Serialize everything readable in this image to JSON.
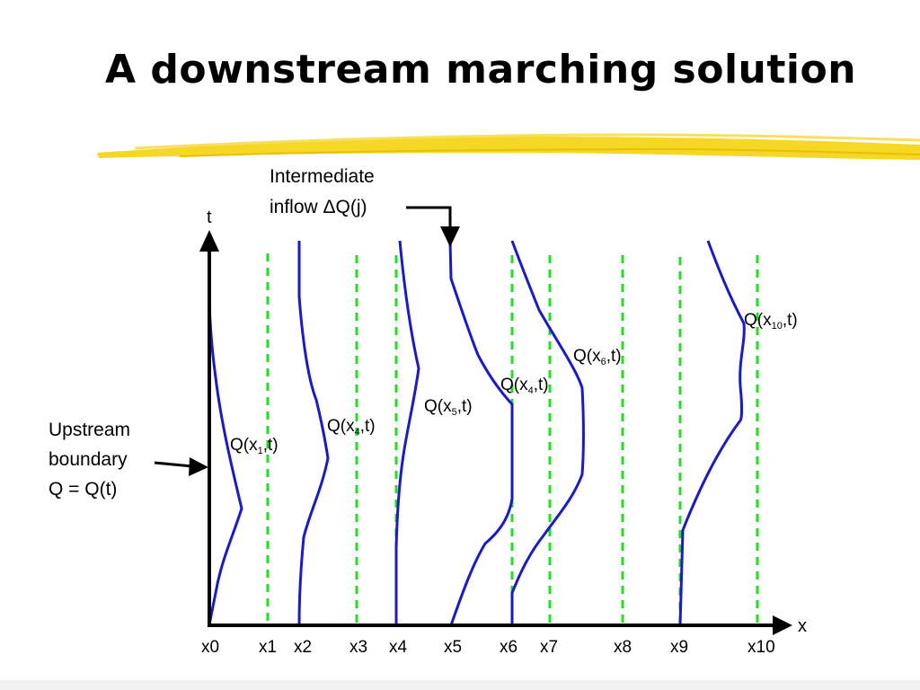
{
  "slide": {
    "title": "A downstream marching solution"
  },
  "diagram": {
    "t_axis_label": "t",
    "x_axis_label": "x",
    "x_tick_labels": [
      "x0",
      "x1",
      "x2",
      "x3",
      "x4",
      "x5",
      "x6",
      "x7",
      "x8",
      "x9",
      "x10"
    ],
    "annotations": {
      "intermediate_inflow_line1": "Intermediate",
      "intermediate_inflow_line2": "inflow ΔQ(j)",
      "upstream_line1": "Upstream",
      "upstream_line2": "boundary",
      "upstream_line3": "Q = Q(t)"
    },
    "curve_labels": [
      {
        "prefix": "Q(x",
        "sub": "1",
        "suffix": ",t)"
      },
      {
        "prefix": "Q(x",
        "sub": "4",
        "suffix": ",t)"
      },
      {
        "prefix": "Q(x",
        "sub": "5",
        "suffix": ",t)"
      },
      {
        "prefix": "Q(x",
        "sub": "4",
        "suffix": ",t)"
      },
      {
        "prefix": "Q(x",
        "sub": "6",
        "suffix": ",t)"
      },
      {
        "prefix": "Q(x",
        "sub": "10",
        "suffix": ",t)"
      }
    ],
    "colors": {
      "curve": "#1a1ac8",
      "gridline": "#22dd22",
      "highlight": "#f5d000",
      "axis": "#000000"
    }
  }
}
